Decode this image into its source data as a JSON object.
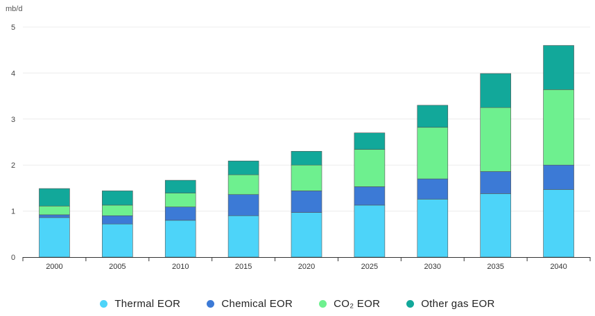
{
  "chart_data": {
    "type": "bar",
    "stacked": true,
    "unit_label": "mb/d",
    "categories": [
      "2000",
      "2005",
      "2010",
      "2015",
      "2020",
      "2025",
      "2030",
      "2035",
      "2040"
    ],
    "series": [
      {
        "name": "Thermal EOR",
        "color": "#4dd4f9",
        "values": [
          0.86,
          0.72,
          0.8,
          0.9,
          0.97,
          1.13,
          1.26,
          1.38,
          1.47
        ]
      },
      {
        "name": "Chemical EOR",
        "color": "#3c7ad6",
        "values": [
          0.06,
          0.18,
          0.29,
          0.46,
          0.47,
          0.4,
          0.44,
          0.48,
          0.53
        ]
      },
      {
        "name": "CO₂ EOR",
        "color": "#6ef08f",
        "values": [
          0.19,
          0.23,
          0.3,
          0.43,
          0.56,
          0.81,
          1.12,
          1.39,
          1.64
        ]
      },
      {
        "name": "Other gas EOR",
        "color": "#12a89a",
        "values": [
          0.38,
          0.31,
          0.28,
          0.3,
          0.3,
          0.36,
          0.48,
          0.74,
          0.96
        ]
      }
    ],
    "yticks": [
      0,
      1,
      2,
      3,
      4,
      5
    ],
    "ylim": [
      0,
      5
    ],
    "grid": true,
    "legend_position": "bottom"
  }
}
